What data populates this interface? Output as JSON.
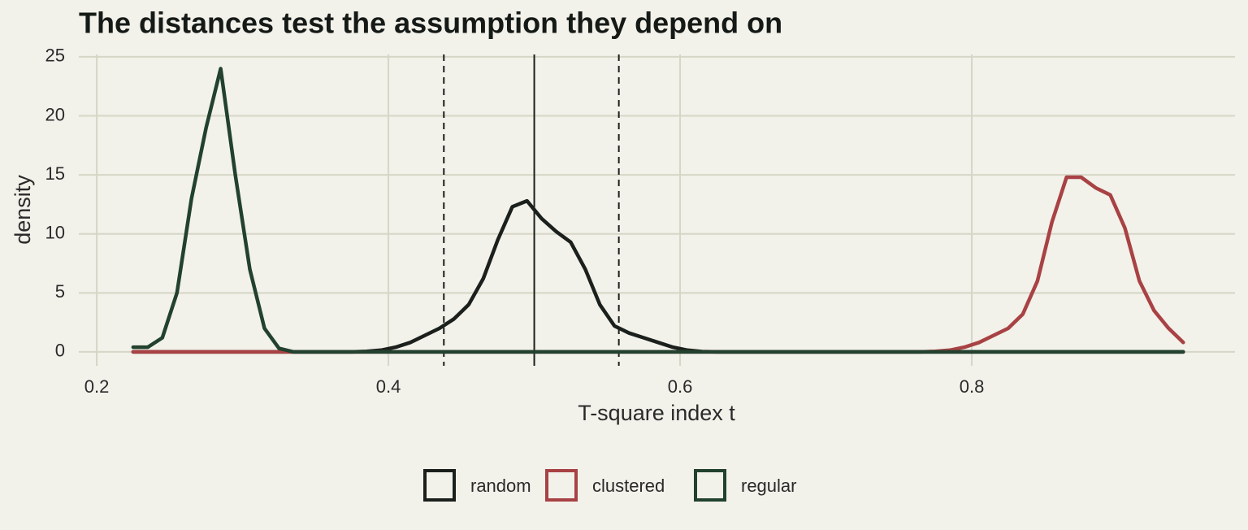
{
  "chart_data": {
    "type": "line",
    "title": "The distances test the assumption they depend on",
    "x_label": "T-square index t",
    "y_label": "density",
    "x": [
      0.225,
      0.235,
      0.245,
      0.255,
      0.265,
      0.275,
      0.285,
      0.295,
      0.305,
      0.315,
      0.325,
      0.335,
      0.345,
      0.355,
      0.365,
      0.375,
      0.385,
      0.395,
      0.405,
      0.415,
      0.425,
      0.435,
      0.445,
      0.455,
      0.465,
      0.475,
      0.485,
      0.495,
      0.505,
      0.515,
      0.525,
      0.535,
      0.545,
      0.555,
      0.565,
      0.575,
      0.585,
      0.595,
      0.605,
      0.615,
      0.625,
      0.635,
      0.645,
      0.655,
      0.665,
      0.675,
      0.685,
      0.695,
      0.705,
      0.715,
      0.725,
      0.735,
      0.745,
      0.755,
      0.765,
      0.775,
      0.785,
      0.795,
      0.805,
      0.815,
      0.825,
      0.835,
      0.845,
      0.855,
      0.865,
      0.875,
      0.885,
      0.895,
      0.905,
      0.915,
      0.925,
      0.935,
      0.945
    ],
    "series": [
      {
        "name": "random",
        "color": "#1b201d",
        "values": [
          0,
          0,
          0,
          0,
          0,
          0,
          0,
          0,
          0,
          0,
          0,
          0,
          0,
          0,
          0,
          0,
          0.05,
          0.15,
          0.4,
          0.8,
          1.4,
          2.0,
          2.8,
          4,
          6.2,
          9.5,
          12.3,
          12.8,
          11.3,
          10.2,
          9.3,
          7,
          4,
          2.2,
          1.6,
          1.2,
          0.8,
          0.4,
          0.15,
          0.03,
          0,
          0,
          0,
          0,
          0,
          0,
          0,
          0,
          0,
          0,
          0,
          0,
          0,
          0,
          0,
          0,
          0,
          0,
          0,
          0,
          0,
          0,
          0,
          0,
          0,
          0,
          0,
          0,
          0,
          0,
          0,
          0,
          0
        ]
      },
      {
        "name": "clustered",
        "color": "#a84244",
        "values": [
          0,
          0,
          0,
          0,
          0,
          0,
          0,
          0,
          0,
          0,
          0,
          0,
          0,
          0,
          0,
          0,
          0,
          0,
          0,
          0,
          0,
          0,
          0,
          0,
          0,
          0,
          0,
          0,
          0,
          0,
          0,
          0,
          0,
          0,
          0,
          0,
          0,
          0,
          0,
          0,
          0,
          0,
          0,
          0,
          0,
          0,
          0,
          0,
          0,
          0,
          0,
          0,
          0,
          0,
          0,
          0.05,
          0.15,
          0.4,
          0.8,
          1.4,
          2,
          3.2,
          6,
          11,
          14.8,
          14.8,
          13.9,
          13.3,
          10.5,
          6,
          3.5,
          2,
          0.8
        ]
      },
      {
        "name": "regular",
        "color": "#22412f",
        "values": [
          0.4,
          0.4,
          1.2,
          5,
          13,
          19,
          24,
          15,
          7,
          2,
          0.3,
          0,
          0,
          0,
          0,
          0,
          0,
          0,
          0,
          0,
          0,
          0,
          0,
          0,
          0,
          0,
          0,
          0,
          0,
          0,
          0,
          0,
          0,
          0,
          0,
          0,
          0,
          0,
          0,
          0,
          0,
          0,
          0,
          0,
          0,
          0,
          0,
          0,
          0,
          0,
          0,
          0,
          0,
          0,
          0,
          0,
          0,
          0,
          0,
          0,
          0,
          0,
          0,
          0,
          0,
          0,
          0,
          0,
          0,
          0,
          0,
          0,
          0
        ]
      }
    ],
    "reference_lines": [
      {
        "value": 0.438,
        "style": "dashed"
      },
      {
        "value": 0.5,
        "style": "solid"
      },
      {
        "value": 0.558,
        "style": "dashed"
      }
    ],
    "xlim": [
      0.1877,
      0.9805
    ],
    "xticks": [
      0.2,
      0.4,
      0.6,
      0.8
    ],
    "ylim": [
      -0.9,
      25.2
    ],
    "yticks": [
      0,
      5,
      10,
      15,
      20,
      25
    ],
    "grid": true,
    "legend": "bottom"
  }
}
